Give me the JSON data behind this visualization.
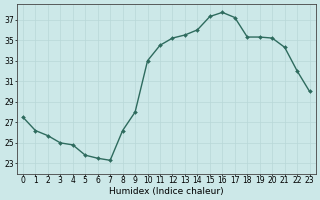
{
  "x": [
    0,
    1,
    2,
    3,
    4,
    5,
    6,
    7,
    8,
    9,
    10,
    11,
    12,
    13,
    14,
    15,
    16,
    17,
    18,
    19,
    20,
    21,
    22,
    23
  ],
  "y": [
    27.5,
    26.2,
    25.7,
    25.0,
    24.8,
    23.8,
    23.5,
    23.3,
    26.2,
    28.0,
    33.0,
    34.5,
    35.2,
    35.5,
    36.0,
    37.3,
    37.7,
    37.2,
    35.3,
    35.3,
    35.2,
    34.3,
    32.0,
    30.0
  ],
  "line_color": "#2e6b5e",
  "marker": "D",
  "markersize": 2.0,
  "linewidth": 1.0,
  "bg_color": "#cce8e8",
  "grid_color": "#b8d8d8",
  "xlabel": "Humidex (Indice chaleur)",
  "ylabel": "",
  "yticks": [
    23,
    25,
    27,
    29,
    31,
    33,
    35,
    37
  ],
  "xticks": [
    0,
    1,
    2,
    3,
    4,
    5,
    6,
    7,
    8,
    9,
    10,
    11,
    12,
    13,
    14,
    15,
    16,
    17,
    18,
    19,
    20,
    21,
    22,
    23
  ],
  "ylim": [
    22.0,
    38.5
  ],
  "xlim": [
    -0.5,
    23.5
  ],
  "xlabel_fontsize": 6.5,
  "tick_fontsize": 5.5
}
